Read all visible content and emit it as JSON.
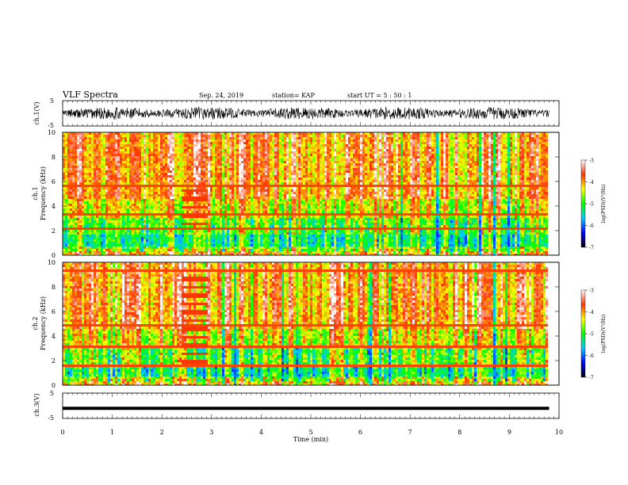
{
  "header": {
    "title": "VLF Spectra",
    "date": "Sep. 24, 2019",
    "station": "station= KAP",
    "start": "start  UT =   5 : 50 : 1"
  },
  "chart_data": [
    {
      "type": "line",
      "panel": "ch1-waveform",
      "ylabel": "ch.1(V)",
      "ylim": [
        -5,
        5
      ],
      "yticks": [
        "5",
        "-5"
      ],
      "xlim": [
        0,
        10
      ],
      "color": "#000000",
      "amplitude_range": [
        -2.5,
        2.5
      ]
    },
    {
      "type": "heatmap",
      "panel": "ch1-spectrogram",
      "ylabel": "ch.1  Frequency  (kHz)",
      "ylabel_channel": "ch.1",
      "ylabel_text": "Frequency  (kHz)",
      "ylim": [
        0,
        10
      ],
      "yticks": [
        "0",
        "2",
        "4",
        "6",
        "8",
        "10"
      ],
      "xlim": [
        0,
        10
      ],
      "data_end_min": 9.8,
      "colorbar": {
        "label": "log(PSD)(V²/Hz)",
        "range": [
          -7,
          -3
        ],
        "ticks": [
          "-3",
          "-4",
          "-5",
          "-6",
          "-7"
        ],
        "colors": [
          "#000000",
          "#0000ff",
          "#00c8ff",
          "#00ff00",
          "#ffff00",
          "#ff3300",
          "#ffffff"
        ]
      },
      "features": [
        {
          "kind": "tone",
          "freq_khz": 2.2
        },
        {
          "kind": "tone",
          "freq_khz": 3.4
        },
        {
          "kind": "tone",
          "freq_khz": 5.6
        },
        {
          "kind": "burst",
          "t_min": [
            2.4,
            2.9
          ],
          "freq_khz": [
            2.0,
            5.5
          ]
        }
      ]
    },
    {
      "type": "heatmap",
      "panel": "ch2-spectrogram",
      "ylabel": "ch.2  Frequency  (kHz)",
      "ylabel_channel": "ch.2",
      "ylabel_text": "Frequency  (kHz)",
      "ylim": [
        0,
        10
      ],
      "yticks": [
        "0",
        "2",
        "4",
        "6",
        "8",
        "10"
      ],
      "xlim": [
        0,
        10
      ],
      "data_end_min": 9.8,
      "colorbar": {
        "label": "log(PSD)(V²/Hz)",
        "range": [
          -7,
          -3
        ],
        "ticks": [
          "-3",
          "-4",
          "-5",
          "-6",
          "-7"
        ],
        "colors": [
          "#000000",
          "#0000ff",
          "#00c8ff",
          "#00ff00",
          "#ffff00",
          "#ff3300",
          "#ffffff"
        ]
      },
      "features": [
        {
          "kind": "tone",
          "freq_khz": 1.6
        },
        {
          "kind": "tone",
          "freq_khz": 3.2
        },
        {
          "kind": "tone",
          "freq_khz": 4.9
        },
        {
          "kind": "tone",
          "freq_khz": 9.3
        },
        {
          "kind": "burst",
          "t_min": [
            2.4,
            2.9
          ],
          "freq_khz": [
            1.5,
            9.8
          ]
        }
      ]
    },
    {
      "type": "line",
      "panel": "ch3-waveform",
      "ylabel": "ch.3(V)",
      "ylim": [
        -5,
        5
      ],
      "yticks": [
        "5",
        "-5"
      ],
      "xlim": [
        0,
        10
      ],
      "xlabel": "Time  (min)",
      "xticks": [
        "0",
        "1",
        "2",
        "3",
        "4",
        "5",
        "6",
        "7",
        "8",
        "9",
        "10"
      ],
      "constant_value": -1,
      "color": "#000000"
    }
  ]
}
